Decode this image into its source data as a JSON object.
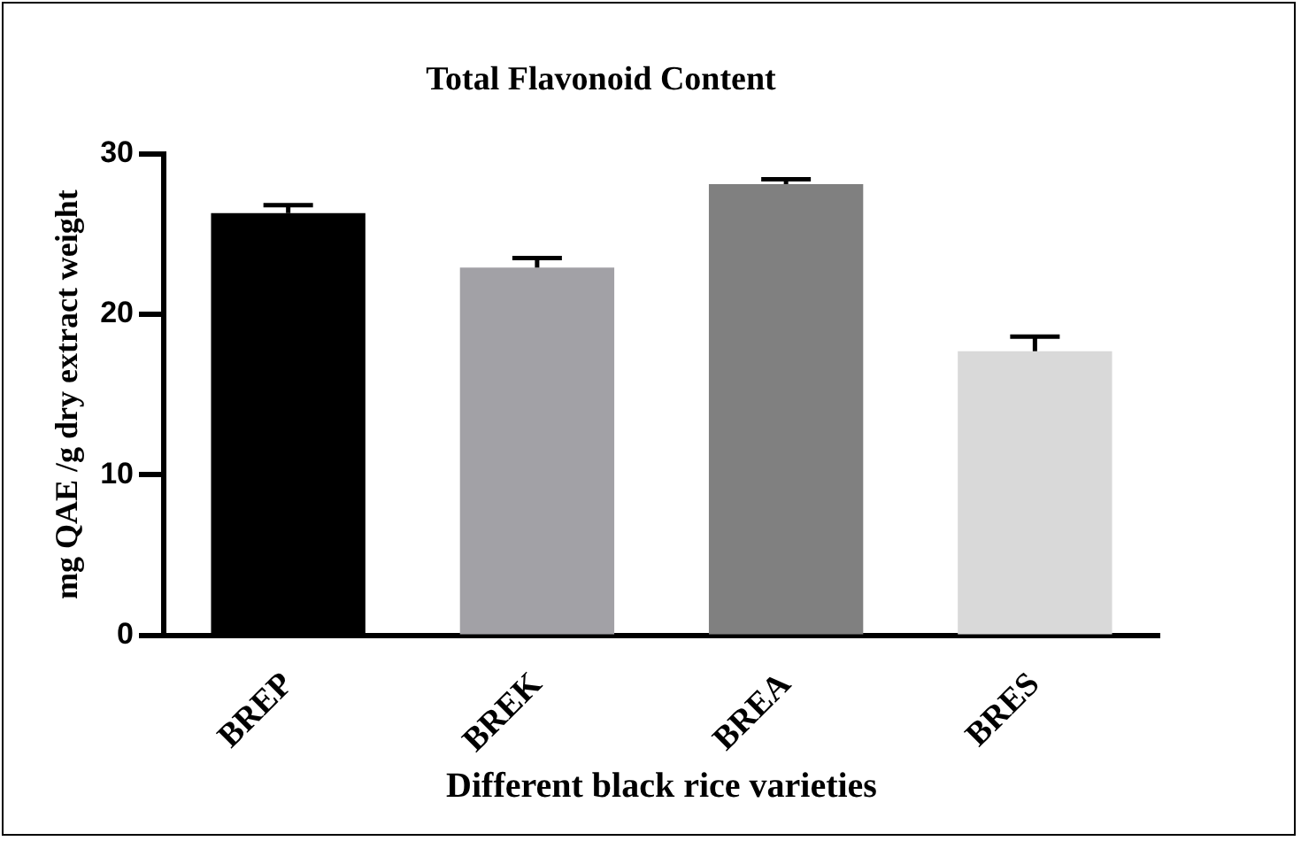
{
  "chart_data": {
    "type": "bar",
    "title": "Total Flavonoid Content",
    "xlabel": "Different black rice varieties",
    "ylabel": "mg QAE /g dry extract weight",
    "categories": [
      "BREP",
      "BREK",
      "BREA",
      "BRES"
    ],
    "values": [
      26.3,
      22.9,
      28.1,
      17.7
    ],
    "errors": [
      0.5,
      0.6,
      0.3,
      0.9
    ],
    "colors": [
      "#000000",
      "#a2a1a6",
      "#808080",
      "#d9d9d9"
    ],
    "ylim": [
      0,
      30
    ],
    "yticks": [
      0,
      10,
      20,
      30
    ],
    "grid": false,
    "legend": false
  }
}
